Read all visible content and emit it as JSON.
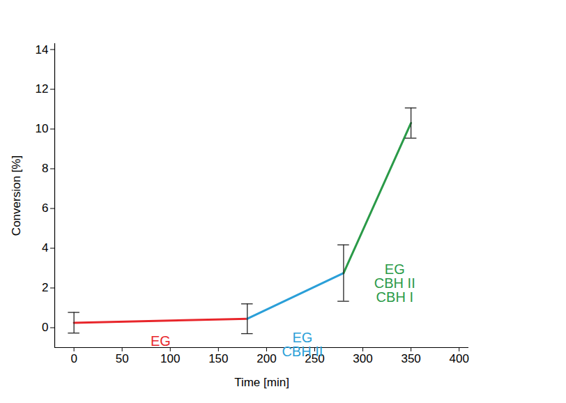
{
  "chart_data": {
    "type": "line",
    "x_label": "Time [min]",
    "y_label": "Conversion [%]",
    "x": [
      0,
      180,
      280,
      350
    ],
    "values": [
      0.25,
      0.45,
      2.75,
      10.3
    ],
    "errors": [
      0.52,
      0.75,
      1.42,
      0.76
    ],
    "series": [
      {
        "name": "EG",
        "color": "#e8262b",
        "values": [
          0.25,
          0.45,
          null,
          null
        ]
      },
      {
        "name": "EG\nCBH II",
        "color": "#2a9fd8",
        "values": [
          null,
          0.45,
          2.75,
          null
        ]
      },
      {
        "name": "EG\nCBH II\nCBH I",
        "color": "#2a9a48",
        "values": [
          null,
          null,
          2.75,
          10.3
        ]
      }
    ],
    "xlim": [
      -20,
      410
    ],
    "xticks": [
      0,
      50,
      100,
      150,
      200,
      250,
      300,
      350,
      400
    ],
    "ylim": [
      -1,
      14.3
    ],
    "yticks": [
      0,
      2,
      4,
      6,
      8,
      10,
      12,
      14
    ],
    "grid": false
  }
}
